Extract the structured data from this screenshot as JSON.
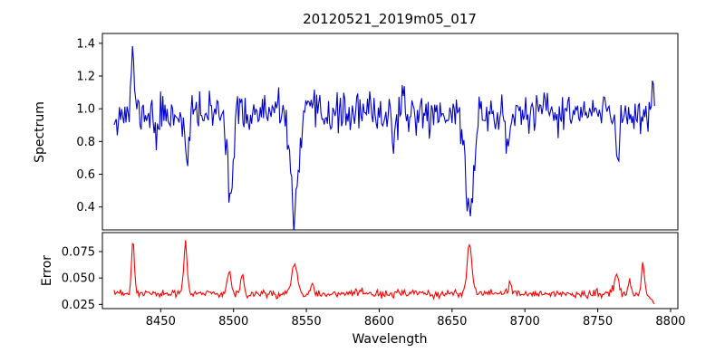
{
  "figure": {
    "title": "20120521_2019m05_017",
    "background_color": "#ffffff",
    "axes_color": "#000000"
  },
  "chart_data": [
    {
      "type": "line",
      "title": "20120521_2019m05_017",
      "ylabel": "Spectrum",
      "xlabel": "",
      "legend": "none",
      "grid": false,
      "color": "#0000cc",
      "xlim": [
        8410,
        8805
      ],
      "ylim": [
        0.26,
        1.46
      ],
      "yticks": [
        0.4,
        0.6,
        0.8,
        1.0,
        1.2,
        1.4
      ],
      "ytick_labels": [
        "0.4",
        "0.6",
        "0.8",
        "1.0",
        "1.2",
        "1.4"
      ],
      "x_range": [
        8418,
        8789
      ],
      "n_points": 500,
      "seed": 11,
      "baseline": 0.97,
      "noise_sigma": 0.06,
      "features": [
        {
          "x": 8431,
          "amp": 0.38,
          "width": 1.0,
          "note": "emission spike to ~1.38"
        },
        {
          "x": 8447,
          "amp": -0.2,
          "width": 0.8
        },
        {
          "x": 8468,
          "amp": -0.33,
          "width": 1.3,
          "note": "dip to ~0.64"
        },
        {
          "x": 8498,
          "amp": -0.5,
          "width": 1.8,
          "note": "deep absorption to ~0.46"
        },
        {
          "x": 8542,
          "amp": -0.63,
          "width": 2.6,
          "note": "deepest absorption to ~0.33"
        },
        {
          "x": 8610,
          "amp": -0.18,
          "width": 0.9
        },
        {
          "x": 8662,
          "amp": -0.62,
          "width": 2.7,
          "note": "deep absorption to ~0.35"
        },
        {
          "x": 8688,
          "amp": -0.28,
          "width": 1.1
        },
        {
          "x": 8764,
          "amp": -0.28,
          "width": 1.1
        },
        {
          "x": 8788,
          "amp": 0.16,
          "width": 1.5,
          "note": "rise at right edge to ~1.18"
        }
      ]
    },
    {
      "type": "line",
      "title": "",
      "ylabel": "Error",
      "xlabel": "Wavelength",
      "legend": "none",
      "grid": false,
      "color": "#ff0000",
      "xlim": [
        8410,
        8805
      ],
      "ylim": [
        0.021,
        0.093
      ],
      "yticks": [
        0.025,
        0.05,
        0.075
      ],
      "ytick_labels": [
        "0.025",
        "0.050",
        "0.075"
      ],
      "xticks": [
        8450,
        8500,
        8550,
        8600,
        8650,
        8700,
        8750,
        8800
      ],
      "xtick_labels": [
        "8450",
        "8500",
        "8550",
        "8600",
        "8650",
        "8700",
        "8750",
        "8800"
      ],
      "x_range": [
        8418,
        8789
      ],
      "n_points": 500,
      "seed": 23,
      "baseline": 0.035,
      "noise_sigma": 0.0018,
      "features": [
        {
          "x": 8431,
          "amp": 0.05,
          "width": 1.0,
          "note": "spike to ~0.085"
        },
        {
          "x": 8467,
          "amp": 0.047,
          "width": 1.2,
          "note": "spike to ~0.082"
        },
        {
          "x": 8497,
          "amp": 0.02,
          "width": 1.4
        },
        {
          "x": 8506,
          "amp": 0.02,
          "width": 1.0
        },
        {
          "x": 8542,
          "amp": 0.028,
          "width": 2.0,
          "note": "spike to ~0.063"
        },
        {
          "x": 8554,
          "amp": 0.012,
          "width": 1.0
        },
        {
          "x": 8662,
          "amp": 0.047,
          "width": 1.6,
          "note": "spike to ~0.082"
        },
        {
          "x": 8690,
          "amp": 0.01,
          "width": 1.0
        },
        {
          "x": 8763,
          "amp": 0.02,
          "width": 1.4
        },
        {
          "x": 8772,
          "amp": 0.012,
          "width": 1.0
        },
        {
          "x": 8781,
          "amp": 0.027,
          "width": 1.0,
          "note": "spike to ~0.062"
        },
        {
          "x": 8789,
          "amp": -0.007,
          "width": 3.0,
          "note": "downturn at right edge"
        }
      ]
    }
  ]
}
